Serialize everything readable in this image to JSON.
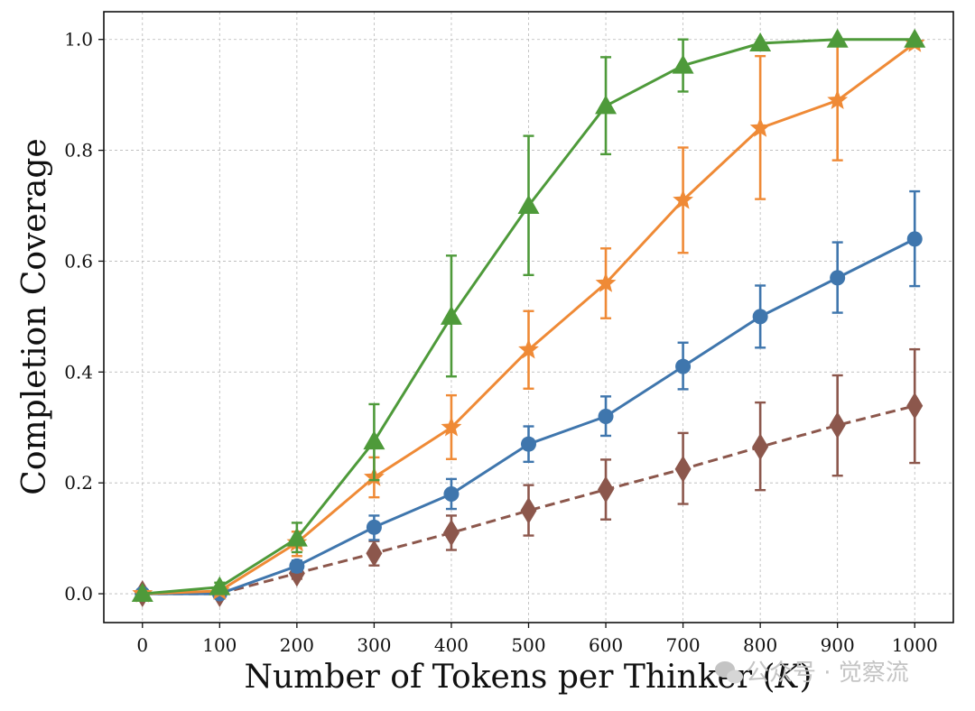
{
  "chart_data": {
    "type": "line",
    "title": "",
    "xlabel": "Number of Tokens per Thinker (K)",
    "ylabel": "Completion Coverage",
    "xlim": [
      -50,
      1050
    ],
    "ylim": [
      -0.052,
      1.05
    ],
    "x": [
      0,
      100,
      200,
      300,
      400,
      500,
      600,
      700,
      800,
      900,
      1000
    ],
    "x_tick_labels": [
      "0",
      "100",
      "200",
      "300",
      "400",
      "500",
      "600",
      "700",
      "800",
      "900",
      "1000"
    ],
    "y_ticks": [
      0.0,
      0.2,
      0.4,
      0.6,
      0.8,
      1.0
    ],
    "y_tick_labels": [
      "0.0",
      "0.2",
      "0.4",
      "0.6",
      "0.8",
      "1.0"
    ],
    "grid": true,
    "legend": "none",
    "series": [
      {
        "name": "green",
        "color": "#4e9a3a",
        "marker": "triangle",
        "linestyle": "solid",
        "values": [
          0.0,
          0.012,
          0.1,
          0.275,
          0.5,
          0.7,
          0.88,
          0.953,
          0.993,
          1.0,
          1.0
        ],
        "err_low": [
          0.0,
          0.0,
          0.075,
          0.205,
          0.392,
          0.575,
          0.793,
          0.906,
          0.993,
          1.0,
          1.0
        ],
        "err_high": [
          0.0,
          0.02,
          0.128,
          0.342,
          0.61,
          0.826,
          0.968,
          1.0,
          0.993,
          1.0,
          1.0
        ]
      },
      {
        "name": "orange",
        "color": "#ef8a36",
        "marker": "star",
        "linestyle": "solid",
        "values": [
          0.0,
          0.005,
          0.092,
          0.21,
          0.3,
          0.44,
          0.56,
          0.71,
          0.84,
          0.89,
          0.993
        ],
        "err_low": [
          0.0,
          0.0,
          0.068,
          0.174,
          0.243,
          0.37,
          0.497,
          0.615,
          0.712,
          0.782,
          0.993
        ],
        "err_high": [
          0.0,
          0.01,
          0.112,
          0.246,
          0.358,
          0.51,
          0.623,
          0.805,
          0.97,
          0.998,
          0.993
        ]
      },
      {
        "name": "blue",
        "color": "#3f76ad",
        "marker": "circle",
        "linestyle": "solid",
        "values": [
          0.0,
          0.0,
          0.05,
          0.12,
          0.18,
          0.27,
          0.32,
          0.41,
          0.5,
          0.57,
          0.64
        ],
        "err_low": [
          0.0,
          0.0,
          0.04,
          0.097,
          0.153,
          0.238,
          0.285,
          0.369,
          0.444,
          0.507,
          0.555
        ],
        "err_high": [
          0.0,
          0.0,
          0.06,
          0.141,
          0.207,
          0.302,
          0.356,
          0.453,
          0.556,
          0.634,
          0.726
        ]
      },
      {
        "name": "brown",
        "color": "#8c574c",
        "marker": "diamond",
        "linestyle": "dashed",
        "values": [
          0.0,
          0.0,
          0.037,
          0.073,
          0.11,
          0.15,
          0.188,
          0.225,
          0.265,
          0.304,
          0.339
        ],
        "err_low": [
          0.0,
          0.0,
          0.027,
          0.051,
          0.079,
          0.105,
          0.134,
          0.162,
          0.187,
          0.213,
          0.236
        ],
        "err_high": [
          0.0,
          0.0,
          0.047,
          0.095,
          0.141,
          0.196,
          0.242,
          0.29,
          0.345,
          0.394,
          0.441
        ]
      }
    ]
  },
  "watermark": {
    "text": "公众号 · 觉察流",
    "icon": "wechat-icon"
  }
}
